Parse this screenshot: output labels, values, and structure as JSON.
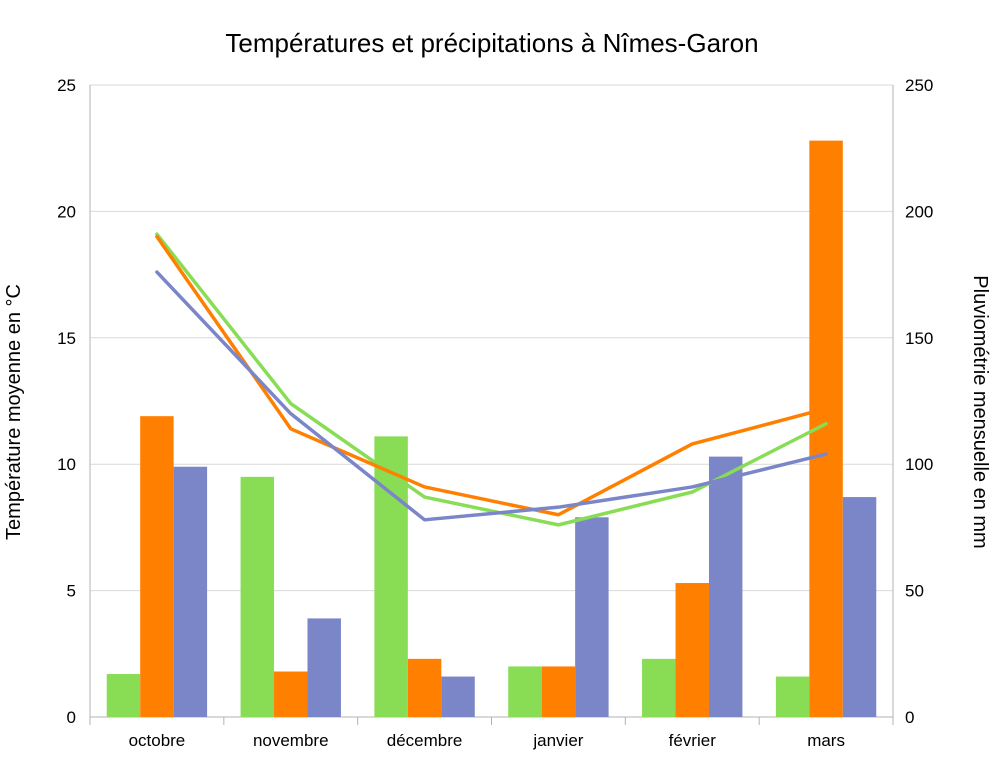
{
  "chart_data": {
    "type": "bar+line",
    "title": "Températures et précipitations à Nîmes-Garon",
    "ylabel_left": "Température moyenne en °C",
    "ylabel_right": "Pluviométrie mensuelle en mm",
    "categories": [
      "octobre",
      "novembre",
      "décembre",
      "janvier",
      "février",
      "mars"
    ],
    "ylim_left": [
      0,
      25
    ],
    "yticks_left": [
      0,
      5,
      10,
      15,
      20,
      25
    ],
    "ylim_right": [
      0,
      250
    ],
    "yticks_right": [
      0,
      50,
      100,
      150,
      200,
      250
    ],
    "grid": true,
    "colors": [
      "#88dd55",
      "#ff8000",
      "#7b86c8"
    ],
    "bar_series": [
      {
        "axis": "right",
        "values": [
          17,
          95,
          111,
          20,
          23,
          16
        ]
      },
      {
        "axis": "right",
        "values": [
          119,
          18,
          23,
          20,
          53,
          228
        ]
      },
      {
        "axis": "right",
        "values": [
          99,
          39,
          16,
          79,
          103,
          87
        ]
      }
    ],
    "line_series": [
      {
        "axis": "left",
        "values": [
          19.1,
          12.4,
          8.7,
          7.6,
          8.9,
          11.6
        ]
      },
      {
        "axis": "left",
        "values": [
          19.0,
          11.4,
          9.1,
          8.0,
          10.8,
          12.2
        ]
      },
      {
        "axis": "left",
        "values": [
          17.6,
          12.0,
          7.8,
          8.3,
          9.1,
          10.4
        ]
      }
    ]
  }
}
